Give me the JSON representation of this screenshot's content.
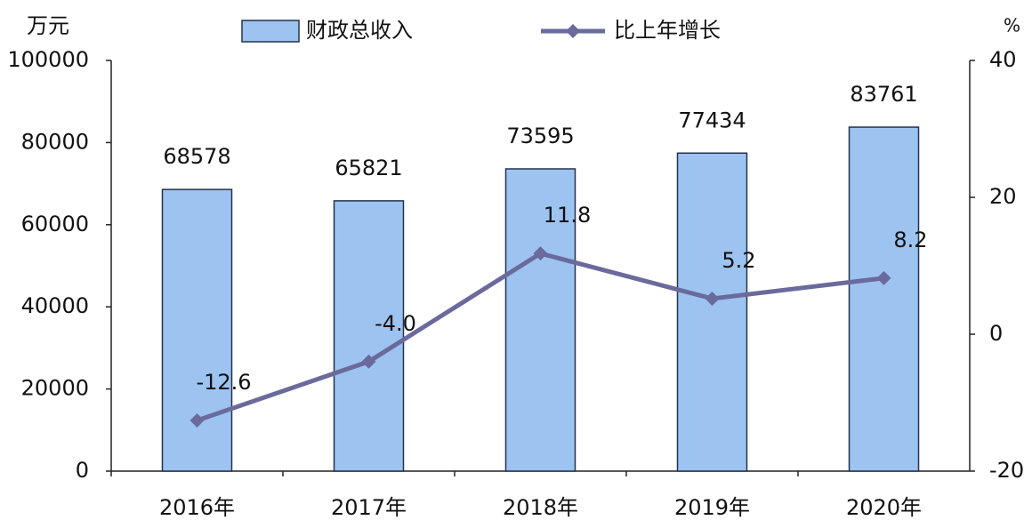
{
  "chart_data": {
    "type": "bar",
    "y_label": "万元",
    "y2_label": "%",
    "categories": [
      "2016年",
      "2017年",
      "2018年",
      "2019年",
      "2020年"
    ],
    "series": [
      {
        "name": "财政总收入",
        "type": "bar",
        "color": "#9dc3f0",
        "values": [
          68578,
          65821,
          73595,
          77434,
          83761
        ]
      },
      {
        "name": "比上年增长",
        "type": "line",
        "axis": "y2",
        "color": "#6a6a9c",
        "values": [
          -12.6,
          -4.0,
          11.8,
          5.2,
          8.2
        ],
        "value_labels": [
          "-12.6",
          "-4.0",
          "11.8",
          "5.2",
          "8.2"
        ]
      }
    ],
    "ylim": [
      0,
      100000
    ],
    "yticks": [
      0,
      20000,
      40000,
      60000,
      80000,
      100000
    ],
    "y2lim": [
      -20,
      40
    ],
    "y2ticks": [
      -20,
      0,
      20,
      40
    ],
    "grid": false
  }
}
